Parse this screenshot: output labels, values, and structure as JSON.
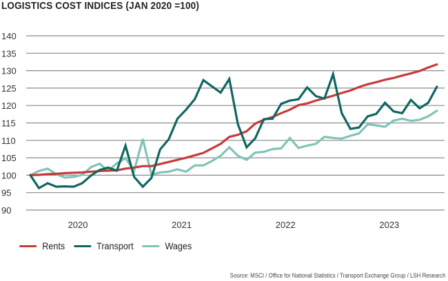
{
  "chart_data": {
    "type": "line",
    "title": "LOGISTICS COST INDICES (JAN 2020 =100)",
    "xlabel": "",
    "ylabel": "",
    "ylim": [
      90,
      140
    ],
    "yticks": [
      140,
      135,
      130,
      125,
      120,
      115,
      110,
      105,
      100,
      95,
      90
    ],
    "x_tick_labels": [
      "2020",
      "2021",
      "2022",
      "2023"
    ],
    "x_range": [
      "Jan 2020",
      "Dec 2023"
    ],
    "frequency": "monthly",
    "grid": true,
    "legend_position": "bottom-left",
    "series": [
      {
        "name": "Rents",
        "color": "#c8393a",
        "values": [
          100,
          100.1,
          100.3,
          100.4,
          100.6,
          100.7,
          100.8,
          101.0,
          101.2,
          101.3,
          101.4,
          101.9,
          102.2,
          102.6,
          102.6,
          103.2,
          103.8,
          104.4,
          105.0,
          105.7,
          106.4,
          107.7,
          109.0,
          111.0,
          111.6,
          112.6,
          114.8,
          115.9,
          116.7,
          117.8,
          118.8,
          120.1,
          120.6,
          121.4,
          122.1,
          122.8,
          123.6,
          124.3,
          125.3,
          126.1,
          126.7,
          127.4,
          127.9,
          128.6,
          129.2,
          129.9,
          130.9,
          131.8
        ]
      },
      {
        "name": "Transport",
        "color": "#0f6660",
        "values": [
          100,
          96.3,
          97.7,
          96.7,
          96.8,
          96.7,
          97.7,
          99.9,
          101.5,
          102.2,
          101.3,
          108.5,
          99.5,
          96.7,
          99.2,
          107.4,
          110.3,
          116.2,
          118.8,
          121.8,
          127.3,
          125.5,
          123.7,
          127.6,
          114.6,
          108.0,
          110.6,
          116.1,
          116.2,
          120.5,
          121.4,
          121.8,
          125.2,
          122.7,
          122.0,
          129.0,
          117.8,
          113.3,
          113.7,
          116.9,
          117.6,
          120.8,
          118.3,
          117.8,
          121.6,
          119.2,
          120.8,
          125.4
        ]
      },
      {
        "name": "Wages",
        "color": "#7fc4b5",
        "values": [
          100,
          101.2,
          101.9,
          100.3,
          99.3,
          99.5,
          100.1,
          102.3,
          103.3,
          101.3,
          103.4,
          104.9,
          101.3,
          110.4,
          100.2,
          100.8,
          101.0,
          101.7,
          101.0,
          102.8,
          102.8,
          104.1,
          105.6,
          108.0,
          105.6,
          104.4,
          106.5,
          106.7,
          107.5,
          107.7,
          110.7,
          107.8,
          108.5,
          109.0,
          111.0,
          110.7,
          110.5,
          111.3,
          112.0,
          114.6,
          114.3,
          113.9,
          115.7,
          116.2,
          115.6,
          115.9,
          116.9,
          118.5
        ]
      }
    ],
    "source": "Source: MSCI / Office for National Statistics / Transport Exchange Group / LSH Research"
  }
}
